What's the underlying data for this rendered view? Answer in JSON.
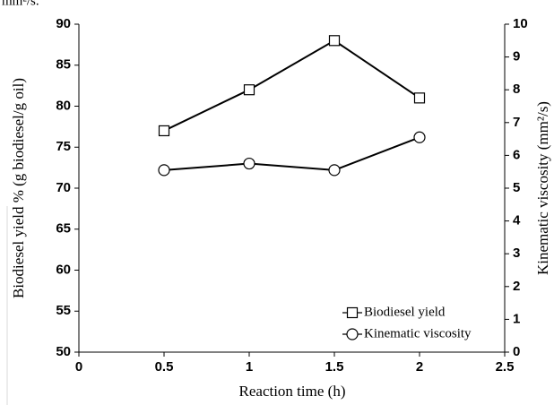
{
  "caption_fragment": "mm²/s.",
  "chart_data": {
    "type": "line",
    "x_label": "Reaction time (h)",
    "y_label": "Biodiesel yield % (g biodiesel/g oil)",
    "y2_label": "Kinematic viscosity (mm²/s)",
    "x": [
      0.5,
      1,
      1.5,
      2
    ],
    "series": [
      {
        "name": "Biodiesel yield",
        "color": "#000000",
        "marker": "square",
        "values": [
          77,
          82,
          88,
          81
        ]
      },
      {
        "name": "Kinematic viscosity",
        "color": "#000000",
        "marker": "circle",
        "axis": "y2",
        "values": [
          5.55,
          5.75,
          5.55,
          6.55
        ]
      }
    ],
    "xlim": [
      0,
      2.5
    ],
    "xticks": [
      0,
      0.5,
      1,
      1.5,
      2,
      2.5
    ],
    "ylim": [
      50,
      90
    ],
    "yticks": [
      50,
      55,
      60,
      65,
      70,
      75,
      80,
      85,
      90
    ],
    "y2lim": [
      0,
      10
    ],
    "y2ticks": [
      0,
      1,
      2,
      3,
      4,
      5,
      6,
      7,
      8,
      9,
      10
    ],
    "grid": false,
    "legend": "lower right"
  }
}
